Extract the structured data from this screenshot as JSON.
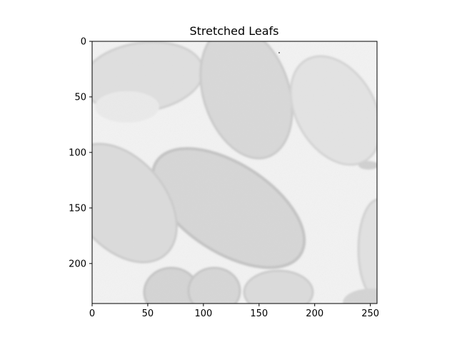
{
  "figure": {
    "title": "Stretched Leafs",
    "image_content": "micrograph",
    "colormap": "grayscale"
  },
  "axes": {
    "x_range": [
      0,
      256
    ],
    "y_range": [
      0,
      236
    ],
    "y_inverted": true,
    "x_ticks": [
      "0",
      "50",
      "100",
      "150",
      "200",
      "250"
    ],
    "y_ticks": [
      "0",
      "50",
      "100",
      "150",
      "200"
    ]
  },
  "colors": {
    "background": "#f1f1f1",
    "cell_fill": "#d9d9d9",
    "cell_edge": "#c4c4c4",
    "speckle": "#bdbdbd",
    "frame": "#000000"
  }
}
